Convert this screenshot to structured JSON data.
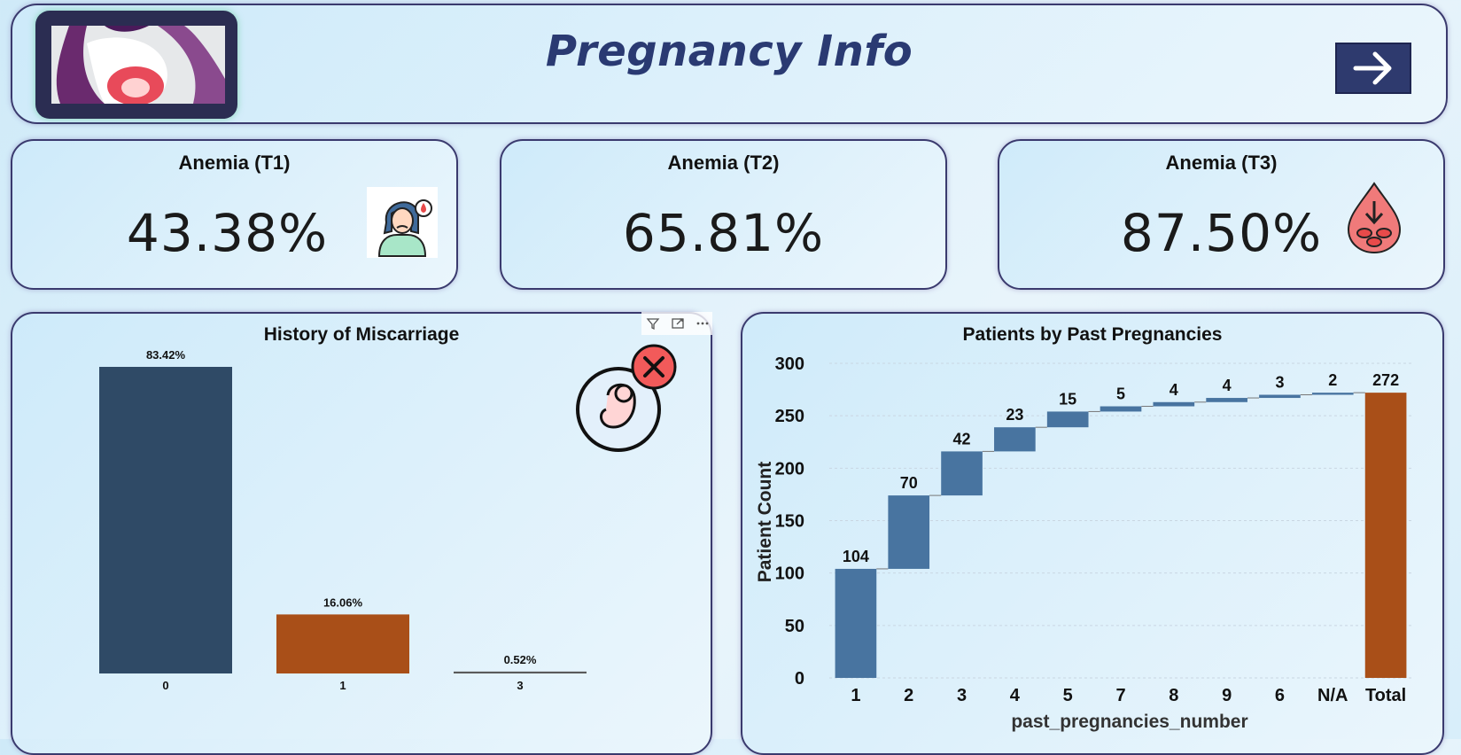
{
  "header": {
    "title": "Pregnancy Info",
    "next_button_icon": "arrow-right-icon",
    "logo_icon": "pregnant-woman-logo"
  },
  "kpis": [
    {
      "label": "Anemia (T1)",
      "value": "43.38%",
      "icon": "sad-woman-blood-drop-icon"
    },
    {
      "label": "Anemia (T2)",
      "value": "65.81%",
      "icon": ""
    },
    {
      "label": "Anemia (T3)",
      "value": "87.50%",
      "icon": "blood-drop-down-arrow-icon"
    }
  ],
  "visual_tools": [
    "filter-icon",
    "focus-mode-icon",
    "more-options-icon"
  ],
  "chart_data": [
    {
      "type": "bar",
      "title": "History of Miscarriage",
      "categories": [
        "0",
        "1",
        "3"
      ],
      "values": [
        83.42,
        16.06,
        0.52
      ],
      "labels": [
        "83.42%",
        "16.06%",
        "0.52%"
      ],
      "colors": [
        "#2f4a66",
        "#a94f18",
        "#5a5a5a"
      ],
      "ylim": [
        0,
        83.42
      ],
      "xlabel": "",
      "ylabel": "",
      "icon": "fetus-cancel-icon"
    },
    {
      "type": "waterfall",
      "title": "Patients by Past Pregnancies",
      "categories": [
        "1",
        "2",
        "3",
        "4",
        "5",
        "7",
        "8",
        "9",
        "6",
        "N/A",
        "Total"
      ],
      "values": [
        104,
        70,
        42,
        23,
        15,
        5,
        4,
        4,
        3,
        2,
        272
      ],
      "total_index": 10,
      "xlabel": "past_pregnancies_number",
      "ylabel": "Patient Count",
      "ylim": [
        0,
        300
      ],
      "yticks": [
        0,
        50,
        100,
        150,
        200,
        250,
        300
      ],
      "bar_color": "#4874a0",
      "total_color": "#a94f18",
      "grid": true
    }
  ]
}
